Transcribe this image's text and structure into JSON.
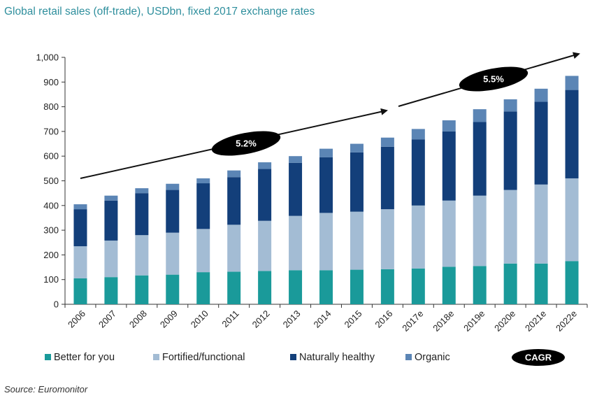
{
  "chart_data": {
    "type": "bar",
    "stacked": true,
    "title": "Global retail sales (off-trade), USDbn, fixed 2017 exchange rates",
    "source": "Source: Euromonitor",
    "xlabel": "",
    "ylabel": "",
    "ylim": [
      0,
      1000
    ],
    "ytick_step": 100,
    "ytick_labels": [
      "0",
      "100",
      "200",
      "300",
      "400",
      "500",
      "600",
      "700",
      "800",
      "900",
      "1,000"
    ],
    "grid": false,
    "legend_position": "bottom",
    "categories": [
      "2006",
      "2007",
      "2008",
      "2009",
      "2010",
      "2011",
      "2012",
      "2013",
      "2014",
      "2015",
      "2016",
      "2017e",
      "2018e",
      "2019e",
      "2020e",
      "2021e",
      "2022e"
    ],
    "series": [
      {
        "name": "Better for you",
        "color": "#1a9a9a",
        "values": [
          105,
          110,
          117,
          120,
          130,
          132,
          135,
          138,
          138,
          140,
          142,
          145,
          152,
          155,
          165,
          165,
          175
        ]
      },
      {
        "name": "Fortified/functional",
        "color": "#a3bcd4",
        "values": [
          130,
          148,
          163,
          170,
          175,
          190,
          203,
          220,
          232,
          235,
          243,
          255,
          268,
          285,
          298,
          320,
          335
        ]
      },
      {
        "name": "Naturally healthy",
        "color": "#133f7a",
        "values": [
          150,
          162,
          170,
          173,
          185,
          193,
          210,
          215,
          225,
          240,
          253,
          268,
          280,
          298,
          318,
          335,
          358
        ]
      },
      {
        "name": "Organic",
        "color": "#5b85b5",
        "values": [
          20,
          20,
          20,
          25,
          20,
          27,
          27,
          27,
          35,
          35,
          37,
          42,
          45,
          52,
          49,
          53,
          57
        ]
      }
    ],
    "annotations": [
      {
        "label": "5.2%",
        "from": "2006",
        "to": "2016"
      },
      {
        "label": "5.5%",
        "from": "2016",
        "to": "2022e"
      }
    ],
    "cagr_legend_label": "CAGR"
  }
}
